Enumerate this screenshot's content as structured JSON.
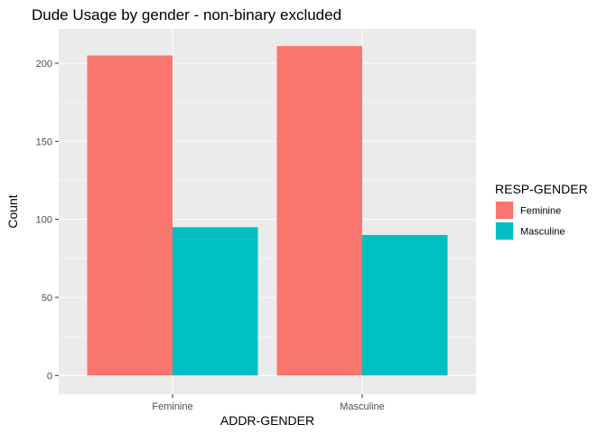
{
  "chart_data": {
    "type": "bar",
    "title": "Dude Usage by gender - non-binary excluded",
    "xlabel": "ADDR-GENDER",
    "ylabel": "Count",
    "categories": [
      "Feminine",
      "Masculine"
    ],
    "series": [
      {
        "name": "Feminine",
        "color": "#F8766D",
        "values": [
          205,
          211
        ]
      },
      {
        "name": "Masculine",
        "color": "#00BFC4",
        "values": [
          95,
          90
        ]
      }
    ],
    "ylim": [
      -12,
      222
    ],
    "yticks": [
      0,
      50,
      100,
      150,
      200
    ],
    "ytick_labels": [
      "0",
      "50",
      "100",
      "150",
      "200"
    ],
    "grid": true,
    "panel_background": "#EBEBEB",
    "legend": {
      "title": "RESP-GENDER",
      "position": "right"
    }
  }
}
